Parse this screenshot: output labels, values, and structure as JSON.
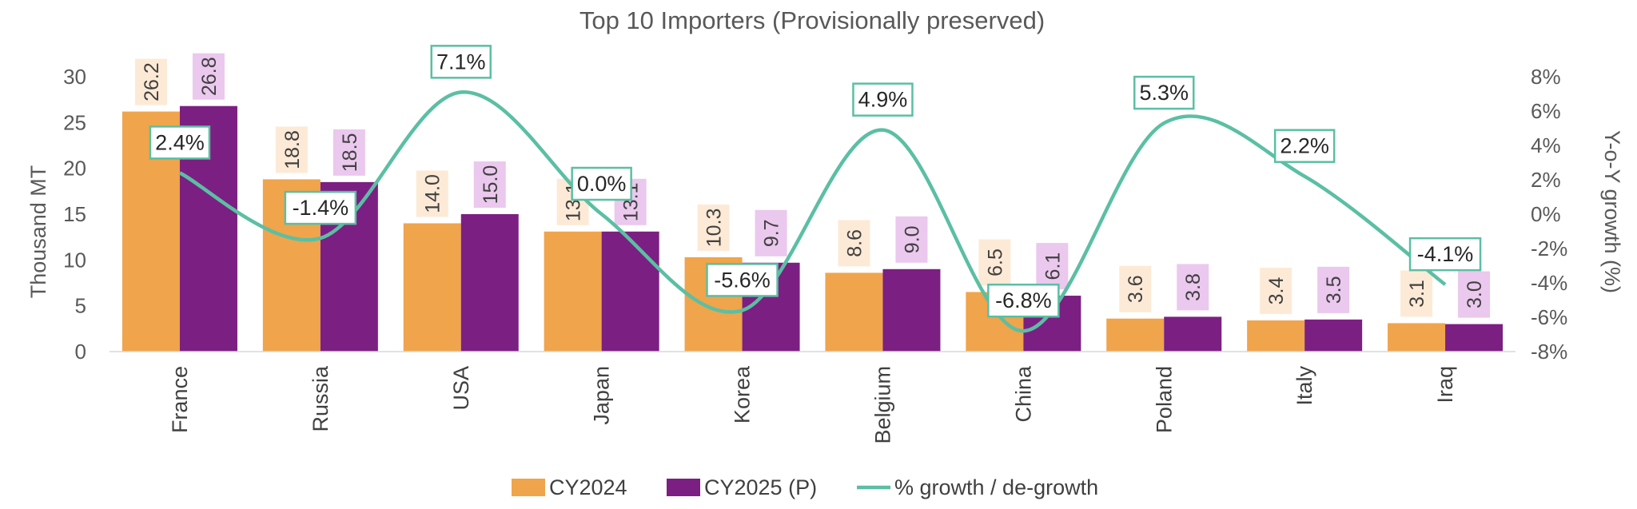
{
  "chart_data": {
    "type": "bar",
    "title": "Top 10 Importers (Provisionally preserved)",
    "categories": [
      "France",
      "Russia",
      "USA",
      "Japan",
      "Korea",
      "Belgium",
      "China",
      "Poland",
      "Italy",
      "Iraq"
    ],
    "series": [
      {
        "name": "CY2024",
        "color": "#F0A44B",
        "label_bg": "#FDEAD6",
        "values": [
          26.2,
          18.8,
          14.0,
          13.1,
          10.3,
          8.6,
          6.5,
          3.6,
          3.4,
          3.1
        ]
      },
      {
        "name": "CY2025 (P)",
        "color": "#7C1F82",
        "label_bg": "#EBC8EE",
        "values": [
          26.8,
          18.5,
          15.0,
          13.1,
          9.7,
          9.0,
          6.1,
          3.8,
          3.5,
          3.0
        ]
      }
    ],
    "line_series": {
      "name": "% growth / de-growth",
      "color": "#5BBFA3",
      "values": [
        2.4,
        -1.4,
        7.1,
        0.0,
        -5.6,
        4.9,
        -6.8,
        5.3,
        2.2,
        -4.1
      ],
      "labels": [
        "2.4%",
        "-1.4%",
        "7.1%",
        "0.0%",
        "-5.6%",
        "4.9%",
        "-6.8%",
        "5.3%",
        "2.2%",
        "-4.1%"
      ]
    },
    "ylabel": "Thousand MT",
    "y2label": "Y-o-Y growth (%)",
    "ylim": [
      0,
      30
    ],
    "y_ticks": [
      0,
      5,
      10,
      15,
      20,
      25,
      30
    ],
    "y2lim": [
      -8,
      8
    ],
    "y2_ticks": [
      "8%",
      "6%",
      "4%",
      "2%",
      "0%",
      "-2%",
      "-4%",
      "-6%",
      "-8%"
    ],
    "legend": [
      "CY2024",
      "CY2025 (P)",
      "% growth / de-growth"
    ],
    "legend_position": "bottom",
    "grid": false
  }
}
